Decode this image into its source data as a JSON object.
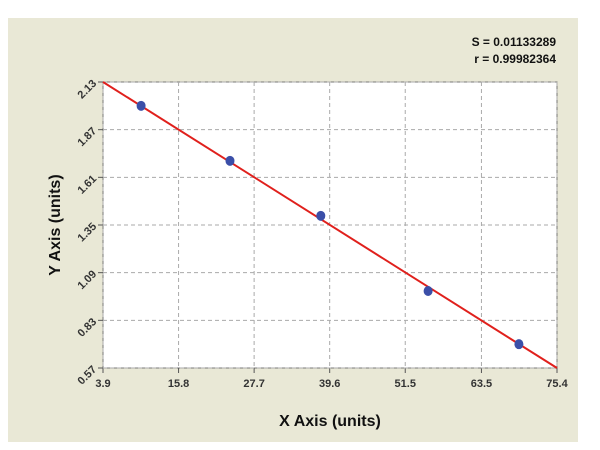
{
  "chart_data": {
    "type": "scatter",
    "annotations": [
      "S = 0.01133289",
      "r = 0.99982364"
    ],
    "x_label": "X Axis (units)",
    "y_label": "Y Axis (units)",
    "series": [
      {
        "x": [
          9.9,
          23.9,
          38.2,
          55.1,
          69.4
        ],
        "values": [
          2.0,
          1.7,
          1.4,
          0.99,
          0.7
        ],
        "color": "#3b4fa8"
      }
    ],
    "fit_line": {
      "x": [
        3.9,
        75.4
      ],
      "values": [
        2.13,
        0.57
      ],
      "color": "#e0201c"
    },
    "xlim": [
      3.9,
      75.4
    ],
    "xticks": [
      3.9,
      15.8,
      27.7,
      39.6,
      51.5,
      63.5,
      75.4
    ],
    "ylim": [
      0.57,
      2.13
    ],
    "yticks": [
      0.57,
      0.83,
      1.09,
      1.35,
      1.61,
      1.87,
      2.13
    ],
    "grid": true
  }
}
